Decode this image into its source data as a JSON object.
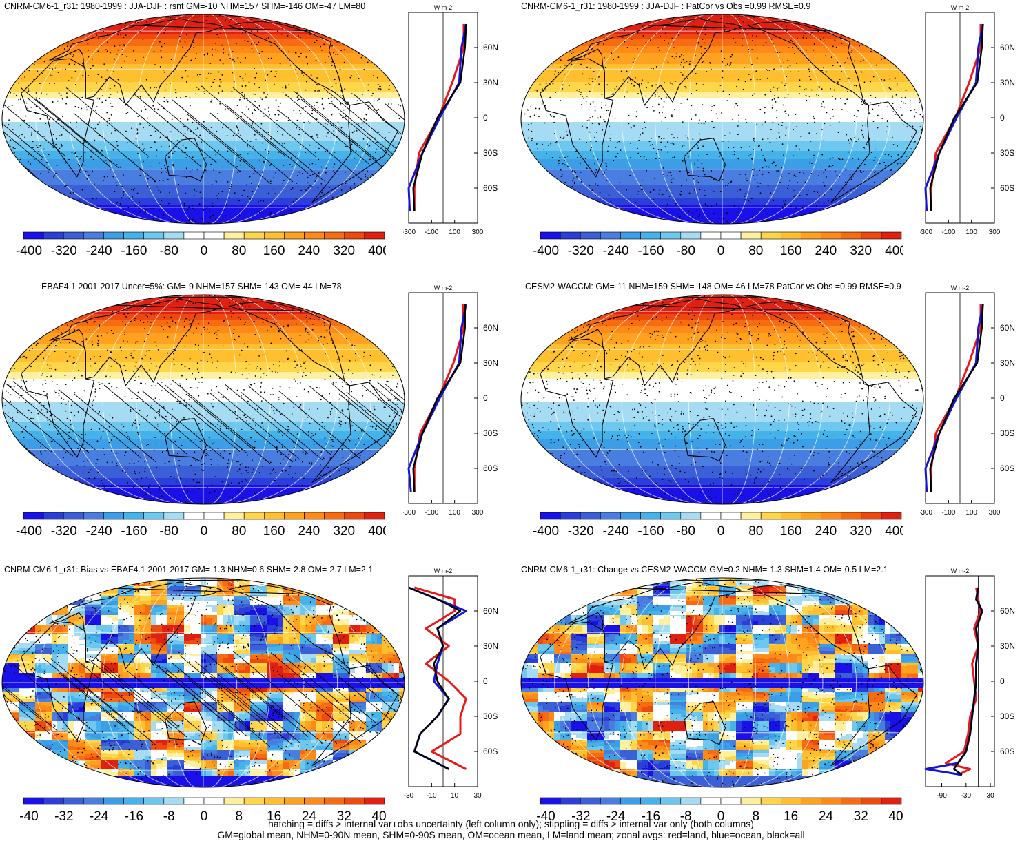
{
  "panels": [
    {
      "title": "CNRM-CM6-1_r31: 1980-1999 : JJA-DJF : rsnt GM=-10 NHM=157 SHM=-146 OM=-47 LM=80",
      "field": "abs",
      "hatch": true,
      "cbar_labels": [
        "-400",
        "-320",
        "-240",
        "-160",
        "-80",
        "0",
        "80",
        "160",
        "240",
        "320",
        "400"
      ],
      "zonal_units": "W m-2",
      "zonal_xticks": [
        "-300",
        "-100",
        "100",
        "300"
      ],
      "zonal_yticks": [
        "60N",
        "30N",
        "0",
        "30S",
        "60S"
      ]
    },
    {
      "title": "CNRM-CM6-1_r31: 1980-1999 : JJA-DJF : PatCor vs Obs =0.99 RMSE=0.9",
      "field": "abs",
      "hatch": false,
      "cbar_labels": [
        "-400",
        "-320",
        "-240",
        "-160",
        "-80",
        "0",
        "80",
        "160",
        "240",
        "320",
        "400"
      ],
      "zonal_units": "W m-2",
      "zonal_xticks": [
        "-300",
        "-100",
        "100",
        "300"
      ],
      "zonal_yticks": [
        "60N",
        "30N",
        "0",
        "30S",
        "60S"
      ]
    },
    {
      "title": "EBAF4.1 2001-2017 Uncer=5%: GM=-9 NHM=157 SHM=-143 OM=-44 LM=78",
      "field": "abs",
      "hatch": true,
      "cbar_labels": [
        "-400",
        "-320",
        "-240",
        "-160",
        "-80",
        "0",
        "80",
        "160",
        "240",
        "320",
        "400"
      ],
      "zonal_units": "W m-2",
      "zonal_xticks": [
        "-300",
        "-100",
        "100",
        "300"
      ],
      "zonal_yticks": [
        "60N",
        "30N",
        "0",
        "30S",
        "60S"
      ]
    },
    {
      "title": "CESM2-WACCM: GM=-11 NHM=159 SHM=-148 OM=-46 LM=78 PatCor vs Obs =0.99 RMSE=0.9",
      "field": "abs",
      "hatch": false,
      "cbar_labels": [
        "-400",
        "-320",
        "-240",
        "-160",
        "-80",
        "0",
        "80",
        "160",
        "240",
        "320",
        "400"
      ],
      "zonal_units": "W m-2",
      "zonal_xticks": [
        "-300",
        "-100",
        "100",
        "300"
      ],
      "zonal_yticks": [
        "60N",
        "30N",
        "0",
        "30S",
        "60S"
      ]
    },
    {
      "title": "CNRM-CM6-1_r31: Bias vs EBAF4.1 2001-2017 GM=-1.3 NHM=0.6 SHM=-2.8 OM=-2.7 LM=2.1",
      "field": "diff",
      "hatch": true,
      "cbar_labels": [
        "-40",
        "-32",
        "-24",
        "-16",
        "-8",
        "0",
        "8",
        "16",
        "24",
        "32",
        "40"
      ],
      "zonal_units": "W m-2",
      "zonal_xticks": [
        "-30",
        "-10",
        "10",
        "30"
      ],
      "zonal_yticks": [
        "60N",
        "30N",
        "0",
        "30S",
        "60S"
      ]
    },
    {
      "title": "CNRM-CM6-1_r31: Change vs CESM2-WACCM GM=0.2 NHM=-1.3 SHM=1.4 OM=-0.5 LM=2.1",
      "field": "diff",
      "hatch": false,
      "cbar_labels": [
        "-40",
        "-32",
        "-24",
        "-16",
        "-8",
        "0",
        "8",
        "16",
        "24",
        "32",
        "40"
      ],
      "zonal_units": "W m-2",
      "zonal_xticks": [
        "-90",
        "-30",
        "30"
      ],
      "zonal_yticks": [
        "60N",
        "30N",
        "0",
        "30S",
        "60S"
      ]
    }
  ],
  "footer": {
    "line1": "hatching = diffs > internal var+obs uncertainty (left column only); stippling = diffs > internal var only (both columns)",
    "line2": "GM=global mean, NHM=0-90N mean, SHM=0-90S mean, OM=ocean mean, LM=land mean; zonal avgs: red=land, blue=ocean, black=all"
  },
  "colors": {
    "scale": [
      "#1a10e8",
      "#2a3fd9",
      "#3b5fd6",
      "#4a7de0",
      "#3c9ee6",
      "#45b3ea",
      "#6ec7ef",
      "#a6dcf3",
      "#ffffff",
      "#ffffff",
      "#fff0a0",
      "#ffd54a",
      "#ffbf2e",
      "#ffa21f",
      "#ff8a17",
      "#f76c10",
      "#ee4a10",
      "#e02010"
    ],
    "land": "#e8181a",
    "ocean": "#1414d8",
    "all": "#000000"
  },
  "chart_data": [
    {
      "type": "heatmap",
      "title": "CNRM-CM6-1_r31: 1980-1999 : JJA-DJF : rsnt GM=-10 NHM=157 SHM=-146 OM=-47 LM=80",
      "colorbar": [
        -400,
        -320,
        -240,
        -160,
        -80,
        0,
        80,
        160,
        240,
        320,
        400
      ],
      "zonal": {
        "lat": [
          80,
          60,
          30,
          0,
          -30,
          -60,
          -80
        ],
        "all": [
          200,
          190,
          150,
          -50,
          -180,
          -260,
          -250
        ],
        "land": [
          180,
          180,
          80,
          -40,
          -210,
          -250,
          -250
        ],
        "ocean": [
          200,
          160,
          140,
          -30,
          -180,
          -300,
          -290
        ]
      }
    },
    {
      "type": "heatmap",
      "title": "CNRM-CM6-1_r31: 1980-1999 : JJA-DJF : PatCor vs Obs =0.99 RMSE=0.9",
      "colorbar": [
        -400,
        -320,
        -240,
        -160,
        -80,
        0,
        80,
        160,
        240,
        320,
        400
      ],
      "zonal": {
        "lat": [
          80,
          60,
          30,
          0,
          -30,
          -60,
          -80
        ],
        "all": [
          200,
          190,
          150,
          -50,
          -180,
          -260,
          -250
        ],
        "land": [
          180,
          180,
          80,
          -40,
          -210,
          -250,
          -250
        ],
        "ocean": [
          200,
          160,
          140,
          -30,
          -180,
          -300,
          -290
        ]
      }
    },
    {
      "type": "heatmap",
      "title": "EBAF4.1 2001-2017 Uncer=5%: GM=-9 NHM=157 SHM=-143 OM=-44 LM=78",
      "colorbar": [
        -400,
        -320,
        -240,
        -160,
        -80,
        0,
        80,
        160,
        240,
        320,
        400
      ],
      "zonal": {
        "lat": [
          80,
          60,
          30,
          0,
          -30,
          -60,
          -80
        ],
        "all": [
          190,
          190,
          150,
          -50,
          -180,
          -260,
          -250
        ],
        "land": [
          170,
          180,
          90,
          -40,
          -200,
          -250,
          -250
        ],
        "ocean": [
          200,
          160,
          140,
          -30,
          -180,
          -300,
          -280
        ]
      }
    },
    {
      "type": "heatmap",
      "title": "CESM2-WACCM: GM=-11 NHM=159 SHM=-148 OM=-46 LM=78 PatCor vs Obs =0.99 RMSE=0.9",
      "colorbar": [
        -400,
        -320,
        -240,
        -160,
        -80,
        0,
        80,
        160,
        240,
        320,
        400
      ],
      "zonal": {
        "lat": [
          80,
          60,
          30,
          0,
          -30,
          -60,
          -80
        ],
        "all": [
          200,
          190,
          150,
          -50,
          -180,
          -260,
          -250
        ],
        "land": [
          180,
          180,
          80,
          -40,
          -210,
          -250,
          -250
        ],
        "ocean": [
          200,
          160,
          140,
          -30,
          -180,
          -300,
          -290
        ]
      }
    },
    {
      "type": "heatmap",
      "title": "CNRM-CM6-1_r31: Bias vs EBAF4.1 2001-2017 GM=-1.3 NHM=0.6 SHM=-2.8 OM=-2.7 LM=2.1",
      "colorbar": [
        -40,
        -32,
        -24,
        -16,
        -8,
        0,
        8,
        16,
        24,
        32,
        40
      ],
      "zonal": {
        "lat": [
          80,
          70,
          60,
          45,
          30,
          15,
          0,
          -15,
          -30,
          -45,
          -60,
          -75
        ],
        "all": [
          -30,
          -5,
          15,
          -5,
          0,
          -8,
          -5,
          5,
          -5,
          -20,
          -25,
          5
        ],
        "land": [
          -25,
          10,
          10,
          -15,
          5,
          -15,
          5,
          20,
          15,
          15,
          -10,
          20
        ],
        "ocean": [
          -30,
          -5,
          20,
          -5,
          0,
          -5,
          -8,
          5,
          -5,
          -20,
          -25,
          5
        ]
      }
    },
    {
      "type": "heatmap",
      "title": "CNRM-CM6-1_r31: Change vs CESM2-WACCM GM=0.2 NHM=-1.3 SHM=1.4 OM=-0.5 LM=2.1",
      "colorbar": [
        -40,
        -32,
        -24,
        -16,
        -8,
        0,
        8,
        16,
        24,
        32,
        40
      ],
      "zonal": {
        "lat": [
          80,
          70,
          60,
          45,
          30,
          15,
          0,
          -15,
          -30,
          -45,
          -60,
          -70,
          -75,
          -80
        ],
        "all": [
          0,
          -5,
          10,
          -5,
          0,
          -5,
          -5,
          -10,
          -15,
          -20,
          -30,
          -50,
          -60,
          -40
        ],
        "land": [
          -5,
          0,
          5,
          -10,
          0,
          -15,
          -10,
          -5,
          -20,
          -25,
          -35,
          -80,
          -20,
          -50
        ],
        "ocean": [
          0,
          -5,
          10,
          -5,
          0,
          -5,
          -5,
          -10,
          -15,
          -20,
          -30,
          -50,
          -130,
          -40
        ]
      }
    }
  ]
}
